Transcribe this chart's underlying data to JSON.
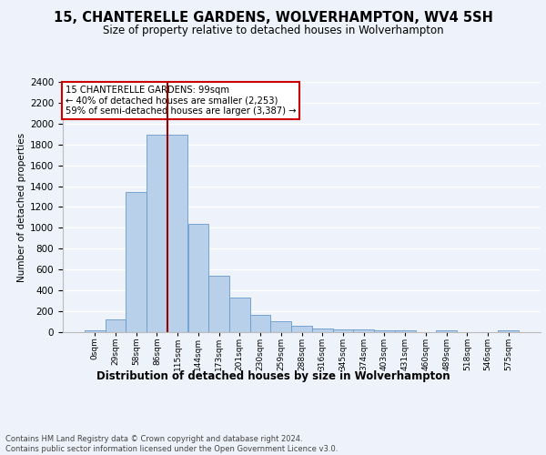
{
  "title": "15, CHANTERELLE GARDENS, WOLVERHAMPTON, WV4 5SH",
  "subtitle": "Size of property relative to detached houses in Wolverhampton",
  "xlabel": "Distribution of detached houses by size in Wolverhampton",
  "ylabel": "Number of detached properties",
  "bar_values": [
    15,
    125,
    1340,
    1890,
    1890,
    1040,
    540,
    335,
    165,
    105,
    60,
    35,
    30,
    25,
    20,
    15,
    0,
    20,
    0,
    0,
    20
  ],
  "bin_labels": [
    "0sqm",
    "29sqm",
    "58sqm",
    "86sqm",
    "115sqm",
    "144sqm",
    "173sqm",
    "201sqm",
    "230sqm",
    "259sqm",
    "288sqm",
    "316sqm",
    "345sqm",
    "374sqm",
    "403sqm",
    "431sqm",
    "460sqm",
    "489sqm",
    "518sqm",
    "546sqm",
    "575sqm"
  ],
  "bar_color": "#b8d0ea",
  "bar_edge_color": "#6699cc",
  "vline_color": "#990000",
  "vline_x": 3.5,
  "annotation_text": "15 CHANTERELLE GARDENS: 99sqm\n← 40% of detached houses are smaller (2,253)\n59% of semi-detached houses are larger (3,387) →",
  "annotation_box_facecolor": "#ffffff",
  "annotation_box_edgecolor": "#cc0000",
  "ylim": [
    0,
    2400
  ],
  "yticks": [
    0,
    200,
    400,
    600,
    800,
    1000,
    1200,
    1400,
    1600,
    1800,
    2000,
    2200,
    2400
  ],
  "footer_line1": "Contains HM Land Registry data © Crown copyright and database right 2024.",
  "footer_line2": "Contains public sector information licensed under the Open Government Licence v3.0.",
  "background_color": "#eef2fa",
  "grid_color": "#ffffff"
}
